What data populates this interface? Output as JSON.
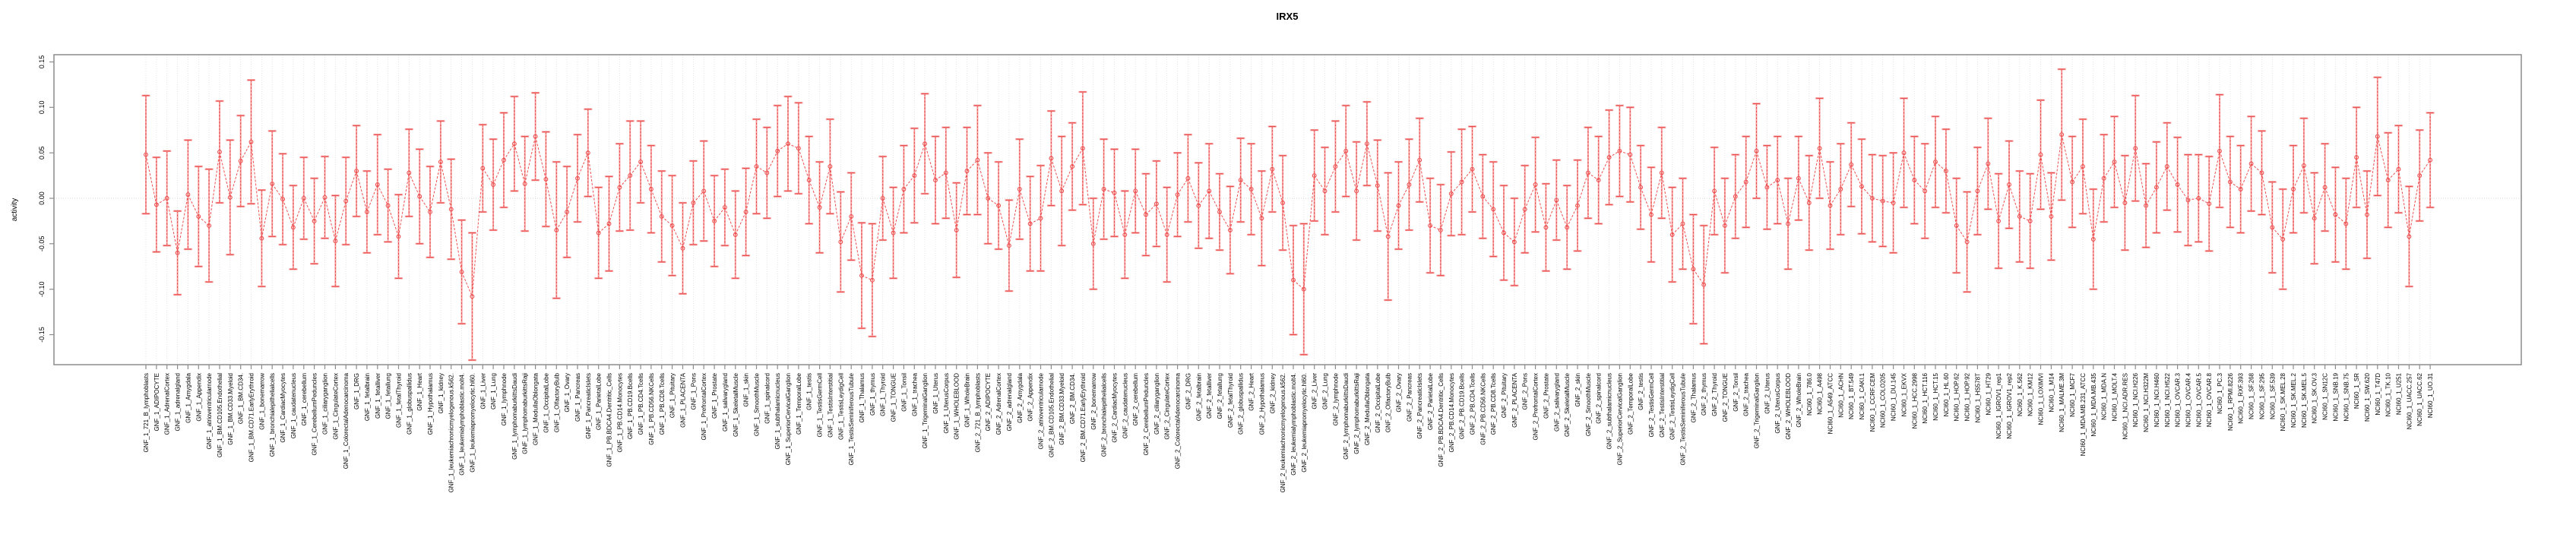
{
  "title": "IRX5",
  "chart_data": {
    "type": "line",
    "subtype": "error-bar-series",
    "title": "IRX5",
    "xlabel": "",
    "ylabel": "activity",
    "ylim": [
      -0.183,
      0.15
    ],
    "ytick_values": [
      -0.15,
      -0.1,
      -0.05,
      0.0,
      0.05,
      0.1,
      0.15
    ],
    "ytick_labels": [
      "-0.15",
      "-0.10",
      "-0.05",
      "0.00",
      "0.05",
      "0.10",
      "0.15"
    ],
    "grid": "vertical-dotted-per-category",
    "zero_line": true,
    "legend": "none",
    "marker": "open-circle",
    "line_style": "dashed",
    "colors": {
      "series": "#ee5050",
      "whisker_dark": "#e84545",
      "whisker_light": "#f8a5a5",
      "grid": "#dcdcdc",
      "zero_line": "#c8c8c8",
      "axis": "#8c8c8c",
      "text": "#000000",
      "background": "#ffffff"
    },
    "categories": [
      "GNF_1_721_B_lymphoblasts",
      "GNF_1_ADIPOCYTE",
      "GNF_1_AdrenalCortex",
      "GNF_1_adrenalgland",
      "GNF_1_Amygdala",
      "GNF_1_Appendix",
      "GNF_1_atrioventricularnode",
      "GNF_1_BM.CD105.Endothelial",
      "GNF_1_BM.CD33.Myeloid",
      "GNF_1_BM.CD34.",
      "GNF_1_BM.CD71.EarlyErythroid",
      "GNF_1_bonemarrow",
      "GNF_1_bronchialepithelialcells",
      "GNF_1_CardiacMyocytes",
      "GNF_1_caudatenucleus",
      "GNF_1_cerebellum",
      "GNF_1_CerebellumPeduncles",
      "GNF_1_ciliaryganglion",
      "GNF_1_CingulateCortex",
      "GNF_1_ColorectalAdenocarcinoma",
      "GNF_1_DRG",
      "GNF_1_fetalbrain",
      "GNF_1_fetalliver",
      "GNF_1_fetallung",
      "GNF_1_fetalThyroid",
      "GNF_1_globuspallidus",
      "GNF_1_Heart",
      "GNF_1_Hypothalamus",
      "GNF_1_kidney",
      "GNF_1_leukemiachronicmyelogenous.k562.",
      "GNF_1_leukemialymphoblastic.molt4.",
      "GNF_1_leukemiapromyelocytic.hl60.",
      "GNF_1_Liver",
      "GNF_1_Lung",
      "GNF_1_lymphnode",
      "GNF_1_lymphomaburkittsDaudi",
      "GNF_1_lymphomaburkittsRaji",
      "GNF_1_MedullaOblongata",
      "GNF_1_OccipitalLobe",
      "GNF_1_OlfactoryBulb",
      "GNF_1_Ovary",
      "GNF_1_Pancreas",
      "GNF_1_PancreaticIslets",
      "GNF_1_ParietalLobe",
      "GNF_1_PB.BDCA4.Dentritic_Cells",
      "GNF_1_PB.CD14.Monocytes",
      "GNF_1_PB.CD19.Bcells",
      "GNF_1_PB.CD4.Tcells",
      "GNF_1_PB.CD56.NKCells",
      "GNF_1_PB.CD8.Tcells",
      "GNF_1_Pituitary",
      "GNF_1_PLACENTA",
      "GNF_1_Pons",
      "GNF_1_PrefrontalCortex",
      "GNF_1_Prostate",
      "GNF_1_salivarygland",
      "GNF_1_SkeletalMuscle",
      "GNF_1_skin",
      "GNF_1_SmoothMuscle",
      "GNF_1_spinalcord",
      "GNF_1_subthalamicnucleus",
      "GNF_1_SuperiorCervicalGanglion",
      "GNF_1_TemporalLobe",
      "GNF_1_testis",
      "GNF_1_TestisGermCell",
      "GNF_1_TestisInterstitial",
      "GNF_1_TestisLeydigCell",
      "GNF_1_TestisSeminiferousTubule",
      "GNF_1_Thalamus",
      "GNF_1_thymus",
      "GNF_1_Thyroid",
      "GNF_1_TONGUE",
      "GNF_1_Tonsil",
      "GNF_1_trachea",
      "GNF_1_TrigeminalGanglion",
      "GNF_1_Uterus",
      "GNF_1_UterusCorpus",
      "GNF_1_WHOLEBLOOD",
      "GNF_1_WholeBrain",
      "GNF_2_721_B_lymphoblasts",
      "GNF_2_ADIPOCYTE",
      "GNF_2_AdrenalCortex",
      "GNF_2_adrenalgland",
      "GNF_2_Amygdala",
      "GNF_2_Appendix",
      "GNF_2_atrioventricularnode",
      "GNF_2_BM.CD105.Endothelial",
      "GNF_2_BM.CD33.Myeloid",
      "GNF_2_BM.CD34.",
      "GNF_2_BM.CD71.EarlyErythroid",
      "GNF_2_bonemarrow",
      "GNF_2_bronchialepithelialcells",
      "GNF_2_CardiacMyocytes",
      "GNF_2_caudatenucleus",
      "GNF_2_cerebellum",
      "GNF_2_CerebellumPeduncles",
      "GNF_2_ciliaryganglion",
      "GNF_2_CingulateCortex",
      "GNF_2_ColorectalAdenocarcinoma",
      "GNF_2_DRG",
      "GNF_2_fetalbrain",
      "GNF_2_fetalliver",
      "GNF_2_fetallung",
      "GNF_2_fetalThyroid",
      "GNF_2_globuspallidus",
      "GNF_2_Heart",
      "GNF_2_Hypothalamus",
      "GNF_2_kidney",
      "GNF_2_leukemiachronicmyelogenous.k562.",
      "GNF_2_leukemialymphoblastic.molt4.",
      "GNF_2_leukemiapromyelocytic.hl60.",
      "GNF_2_Liver",
      "GNF_2_Lung",
      "GNF_2_lymphnode",
      "GNF_2_lymphomaburkittsDaudi",
      "GNF_2_lymphomaburkittsRaji",
      "GNF_2_MedullaOblongata",
      "GNF_2_OccipitalLobe",
      "GNF_2_OlfactoryBulb",
      "GNF_2_Ovary",
      "GNF_2_Pancreas",
      "GNF_2_PancreaticIslets",
      "GNF_2_ParietalLobe",
      "GNF_2_PB.BDCA4.Dentritic_Cells",
      "GNF_2_PB.CD14.Monocytes",
      "GNF_2_PB.CD19.Bcells",
      "GNF_2_PB.CD4.Tcells",
      "GNF_2_PB.CD56.NKCells",
      "GNF_2_PB.CD8.Tcells",
      "GNF_2_Pituitary",
      "GNF_2_PLACENTA",
      "GNF_2_Pons",
      "GNF_2_PrefrontalCortex",
      "GNF_2_Prostate",
      "GNF_2_salivarygland",
      "GNF_2_SkeletalMuscle",
      "GNF_2_skin",
      "GNF_2_SmoothMuscle",
      "GNF_2_spinalcord",
      "GNF_2_subthalamicnucleus",
      "GNF_2_SuperiorCervicalGanglion",
      "GNF_2_TemporalLobe",
      "GNF_2_testis",
      "GNF_2_TestisGermCell",
      "GNF_2_TestisInterstitial",
      "GNF_2_TestisLeydigCell",
      "GNF_2_TestisSeminiferousTubule",
      "GNF_2_Thalamus",
      "GNF_2_thymus",
      "GNF_2_Thyroid",
      "GNF_2_TONGUE",
      "GNF_2_Tonsil",
      "GNF_2_trachea",
      "GNF_2_TrigeminalGanglion",
      "GNF_2_Uterus",
      "GNF_2_UterusCorpus",
      "GNF_2_WHOLEBLOOD",
      "GNF_2_WholeBrain",
      "NCI60_1_786.0",
      "NCI60_1_A498",
      "NCI60_1_A549_ATCC",
      "NCI60_1_ACHN",
      "NCI60_1_BT.549",
      "NCI60_1_CAKI.1",
      "NCI60_1_CCRF.CEM",
      "NCI60_1_COLO205",
      "NCI60_1_DU.145",
      "NCI60_1_EKVX",
      "NCI60_1_HCC.2998",
      "NCI60_1_HCT.116",
      "NCI60_1_HCT.15",
      "NCI60_1_HL.60",
      "NCI60_1_HOP.62",
      "NCI60_1_HOP.92",
      "NCI60_1_HS578T",
      "NCI60_1_HT29",
      "NCI60_1_IGROV1_rep1",
      "NCI60_1_IGROV1_rep2",
      "NCI60_1_K.562",
      "NCI60_1_KM12",
      "NCI60_1_LOXIMVI",
      "NCI60_1_M14",
      "NCI60_1_MALME.3M",
      "NCI60_1_MCF7",
      "NCI60_1_MDA.MB.231_ATCC",
      "NCI60_1_MDA.MB.435",
      "NCI60_1_MDA.N",
      "NCI60_1_MOLT.4",
      "NCI60_1_NCI.ADR.RES",
      "NCI60_1_NCI.H226",
      "NCI60_1_NCI.H322M",
      "NCI60_1_NCI.H460",
      "NCI60_1_NCI.H522",
      "NCI60_1_OVCAR.3",
      "NCI60_1_OVCAR.4",
      "NCI60_1_OVCAR.5",
      "NCI60_1_OVCAR.8",
      "NCI60_1_PC.3",
      "NCI60_1_RPMI.8226",
      "NCI60_1_RXF.393",
      "NCI60_1_SF.268",
      "NCI60_1_SF.295",
      "NCI60_1_SF.539",
      "NCI60_1_SK.MEL.28",
      "NCI60_1_SK.MEL.2",
      "NCI60_1_SK.MEL.5",
      "NCI60_1_SK.OV.3",
      "NCI60_1_SN12C",
      "NCI60_1_SNB.19",
      "NCI60_1_SNB.75",
      "NCI60_1_SR",
      "NCI60_1_SW.620",
      "NCI60_1_T47D",
      "NCI60_1_TK.10",
      "NCI60_1_U251",
      "NCI60_1_UACC.257",
      "NCI60_1_UACC.62",
      "NCI60_1_UO.31"
    ],
    "means": [
      0.048,
      -0.007,
      0.0,
      -0.06,
      0.004,
      -0.02,
      -0.03,
      0.051,
      0.001,
      0.041,
      0.062,
      -0.044,
      0.016,
      -0.001,
      -0.032,
      0.0,
      -0.025,
      0.001,
      -0.047,
      -0.003,
      0.03,
      -0.015,
      0.015,
      -0.008,
      -0.042,
      0.028,
      0.002,
      -0.015,
      0.04,
      -0.012,
      -0.081,
      -0.108,
      0.033,
      0.015,
      0.042,
      0.06,
      0.016,
      0.068,
      0.021,
      -0.035,
      -0.015,
      0.022,
      0.05,
      -0.038,
      -0.028,
      0.012,
      0.025,
      0.04,
      0.01,
      -0.02,
      -0.03,
      -0.055,
      -0.005,
      0.008,
      -0.025,
      -0.01,
      -0.04,
      -0.015,
      0.035,
      0.028,
      0.052,
      0.06,
      0.055,
      0.02,
      -0.01,
      0.035,
      -0.048,
      -0.02,
      -0.085,
      -0.09,
      0.0,
      -0.038,
      0.01,
      0.025,
      0.06,
      0.02,
      0.028,
      -0.035,
      0.03,
      0.042,
      0.0,
      -0.008,
      -0.052,
      0.01,
      -0.028,
      -0.022,
      0.044,
      0.008,
      0.035,
      0.055,
      -0.05,
      0.01,
      0.006,
      -0.04,
      0.008,
      -0.018,
      -0.006,
      -0.04,
      0.004,
      0.022,
      -0.008,
      0.008,
      -0.015,
      -0.035,
      0.02,
      0.01,
      -0.022,
      0.032,
      -0.005,
      -0.09,
      -0.1,
      0.025,
      0.008,
      0.035,
      0.052,
      0.008,
      0.06,
      0.014,
      -0.042,
      -0.008,
      0.015,
      0.042,
      -0.03,
      -0.035,
      0.005,
      0.018,
      0.032,
      0.002,
      -0.012,
      -0.038,
      -0.048,
      -0.012,
      0.015,
      -0.032,
      -0.002,
      -0.032,
      -0.008,
      0.028,
      0.02,
      0.045,
      0.052,
      0.048,
      0.012,
      -0.018,
      0.028,
      -0.04,
      -0.028,
      -0.078,
      -0.095,
      0.008,
      -0.03,
      0.002,
      0.018,
      0.052,
      0.012,
      0.02,
      -0.028,
      0.022,
      -0.005,
      0.055,
      -0.008,
      0.01,
      0.037,
      0.013,
      0.0,
      -0.003,
      -0.005,
      0.05,
      0.02,
      0.008,
      0.04,
      0.03,
      -0.03,
      -0.048,
      0.008,
      0.038,
      -0.025,
      0.015,
      -0.02,
      -0.025,
      0.048,
      -0.02,
      0.07,
      0.018,
      0.035,
      -0.045,
      0.022,
      0.04,
      -0.005,
      0.055,
      -0.008,
      0.012,
      0.035,
      0.015,
      -0.002,
      0.0,
      -0.006,
      0.052,
      0.018,
      0.01,
      0.038,
      0.028,
      -0.032,
      -0.045,
      0.01,
      0.036,
      -0.022,
      0.012,
      -0.018,
      -0.028,
      0.045,
      -0.018,
      0.068,
      0.02,
      0.032,
      -0.042,
      0.025,
      0.042
    ],
    "errors": [
      0.065,
      0.052,
      0.052,
      0.046,
      0.06,
      0.055,
      0.062,
      0.056,
      0.063,
      0.05,
      0.068,
      0.053,
      0.058,
      0.05,
      0.046,
      0.045,
      0.047,
      0.045,
      0.05,
      0.048,
      0.05,
      0.045,
      0.055,
      0.04,
      0.046,
      0.048,
      0.052,
      0.05,
      0.045,
      0.055,
      0.057,
      0.07,
      0.048,
      0.05,
      0.052,
      0.052,
      0.052,
      0.048,
      0.052,
      0.075,
      0.05,
      0.048,
      0.048,
      0.05,
      0.052,
      0.048,
      0.06,
      0.045,
      0.048,
      0.05,
      0.055,
      0.05,
      0.046,
      0.055,
      0.05,
      0.042,
      0.048,
      0.048,
      0.052,
      0.05,
      0.05,
      0.052,
      0.05,
      0.048,
      0.05,
      0.052,
      0.055,
      0.048,
      0.058,
      0.062,
      0.046,
      0.05,
      0.048,
      0.052,
      0.055,
      0.048,
      0.05,
      0.052,
      0.048,
      0.06,
      0.05,
      0.048,
      0.05,
      0.055,
      0.052,
      0.058,
      0.052,
      0.06,
      0.048,
      0.062,
      0.05,
      0.055,
      0.048,
      0.048,
      0.046,
      0.045,
      0.047,
      0.052,
      0.046,
      0.048,
      0.047,
      0.052,
      0.042,
      0.048,
      0.046,
      0.05,
      0.052,
      0.047,
      0.052,
      0.06,
      0.072,
      0.05,
      0.048,
      0.05,
      0.05,
      0.054,
      0.046,
      0.05,
      0.07,
      0.048,
      0.05,
      0.046,
      0.052,
      0.05,
      0.046,
      0.058,
      0.047,
      0.046,
      0.052,
      0.052,
      0.048,
      0.048,
      0.052,
      0.048,
      0.044,
      0.046,
      0.05,
      0.05,
      0.048,
      0.052,
      0.05,
      0.052,
      0.046,
      0.052,
      0.05,
      0.052,
      0.05,
      0.06,
      0.065,
      0.048,
      0.052,
      0.046,
      0.05,
      0.052,
      0.046,
      0.048,
      0.05,
      0.046,
      0.052,
      0.055,
      0.048,
      0.05,
      0.046,
      0.052,
      0.048,
      0.05,
      0.055,
      0.06,
      0.048,
      0.052,
      0.05,
      0.046,
      0.052,
      0.055,
      0.048,
      0.05,
      0.052,
      0.048,
      0.05,
      0.052,
      0.06,
      0.048,
      0.072,
      0.05,
      0.052,
      0.055,
      0.048,
      0.05,
      0.052,
      0.058,
      0.046,
      0.05,
      0.048,
      0.052,
      0.05,
      0.048,
      0.052,
      0.062,
      0.05,
      0.048,
      0.052,
      0.046,
      0.05,
      0.055,
      0.048,
      0.052,
      0.05,
      0.048,
      0.052,
      0.05,
      0.055,
      0.048,
      0.065,
      0.052,
      0.048,
      0.055,
      0.05,
      0.052
    ]
  }
}
